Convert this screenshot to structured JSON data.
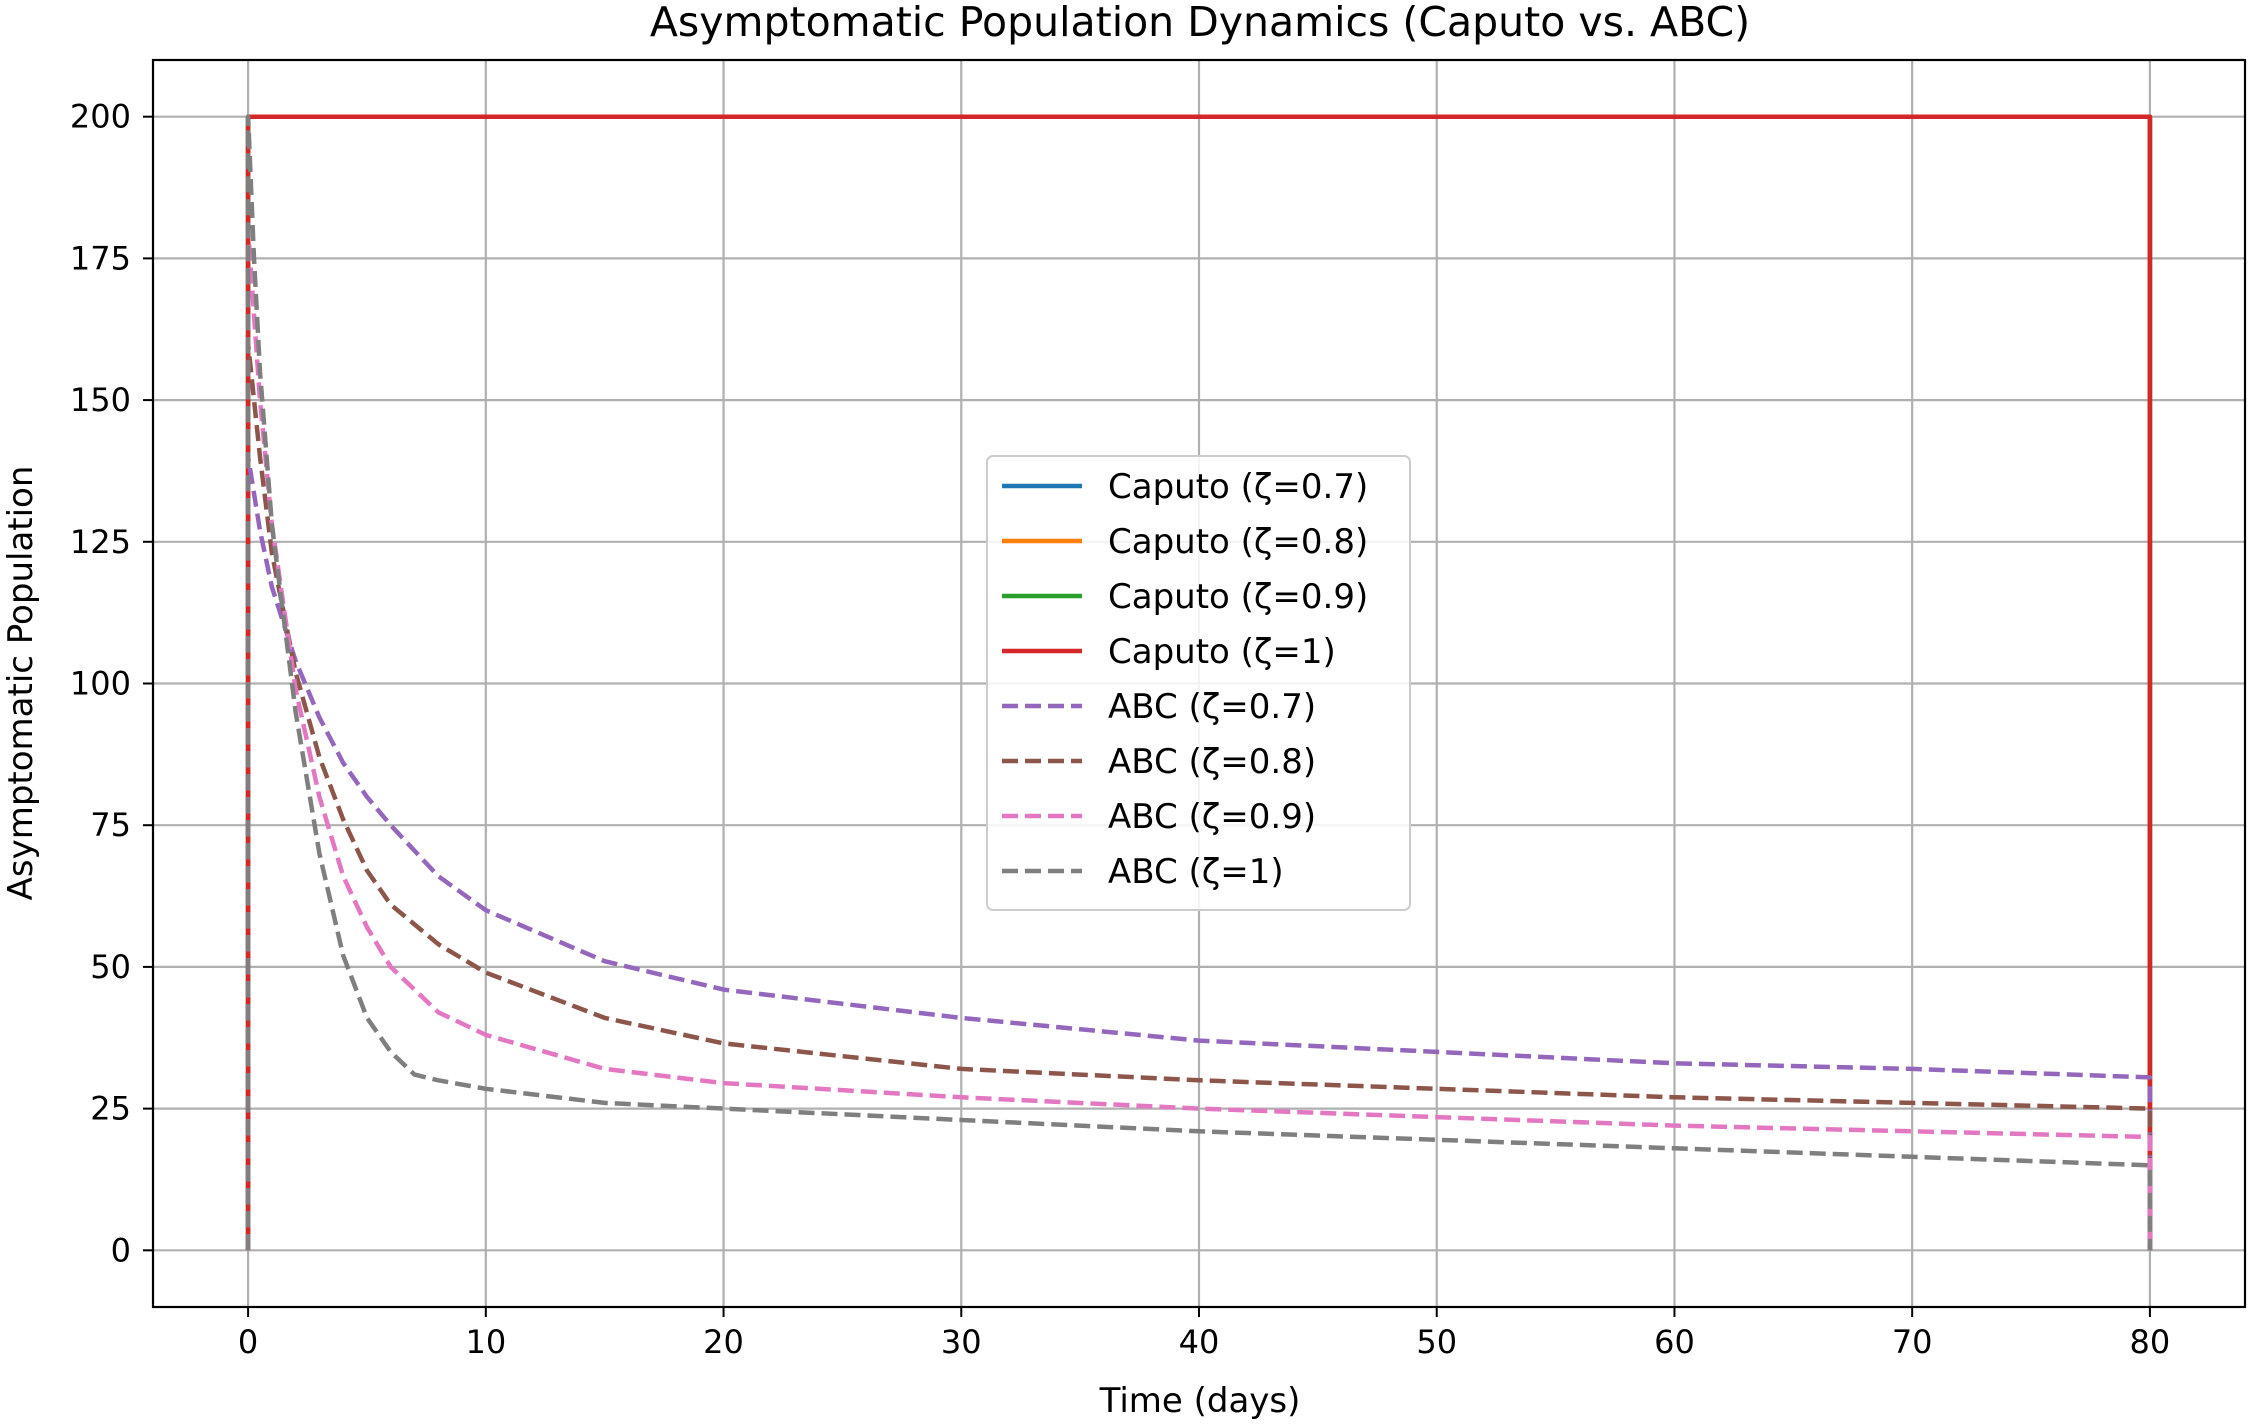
{
  "chart_data": {
    "type": "line",
    "title": "Asymptomatic  Population Dynamics (Caputo vs. ABC)",
    "xlabel": "Time (days)",
    "ylabel": "Asymptomatic  Population",
    "xlim": [
      -4,
      84
    ],
    "ylim": [
      -10,
      210
    ],
    "grid": true,
    "legend_position": "center",
    "x_ticks": [
      0,
      10,
      20,
      30,
      40,
      50,
      60,
      70,
      80
    ],
    "x_tick_labels": [
      "0",
      "10",
      "20",
      "30",
      "40",
      "50",
      "60",
      "70",
      "80"
    ],
    "y_ticks": [
      0,
      25,
      50,
      75,
      100,
      125,
      150,
      175,
      200
    ],
    "y_tick_labels": [
      "0",
      "25",
      "50",
      "75",
      "100",
      "125",
      "150",
      "175",
      "200"
    ],
    "series": [
      {
        "name": "Caputo (ζ=0.7)",
        "color": "#1f77b4",
        "style": "solid",
        "x": [
          0,
          0,
          80,
          80
        ],
        "y": [
          0,
          200,
          200,
          0
        ]
      },
      {
        "name": "Caputo (ζ=0.8)",
        "color": "#ff7f0e",
        "style": "solid",
        "x": [
          0,
          0,
          80,
          80
        ],
        "y": [
          0,
          200,
          200,
          0
        ]
      },
      {
        "name": "Caputo (ζ=0.9)",
        "color": "#2ca02c",
        "style": "solid",
        "x": [
          0,
          0,
          80,
          80
        ],
        "y": [
          0,
          200,
          200,
          0
        ]
      },
      {
        "name": "Caputo (ζ=1)",
        "color": "#d62728",
        "style": "solid",
        "x": [
          0,
          0,
          80,
          80
        ],
        "y": [
          0,
          200,
          200,
          0
        ]
      },
      {
        "name": "ABC (ζ=0.7)",
        "color": "#9467bd",
        "style": "dashed",
        "x": [
          0,
          0,
          0.5,
          1,
          2,
          3,
          4,
          5,
          6,
          8,
          10,
          15,
          20,
          30,
          40,
          50,
          60,
          70,
          80,
          80
        ],
        "y": [
          0,
          140,
          127,
          117,
          104,
          94,
          86,
          80,
          75,
          66,
          60,
          51,
          46,
          41,
          37,
          35,
          33,
          32,
          30.5,
          0
        ]
      },
      {
        "name": "ABC (ζ=0.8)",
        "color": "#8c564b",
        "style": "dashed",
        "x": [
          0,
          0,
          0.5,
          1,
          2,
          3,
          4,
          5,
          6,
          8,
          10,
          15,
          20,
          30,
          40,
          50,
          60,
          70,
          80,
          80
        ],
        "y": [
          0,
          160,
          140,
          123,
          102,
          87,
          76,
          67,
          61,
          54,
          49,
          41,
          36.5,
          32,
          30,
          28.5,
          27,
          26,
          25,
          0
        ]
      },
      {
        "name": "ABC (ζ=0.9)",
        "color": "#e377c2",
        "style": "dashed",
        "x": [
          0,
          0,
          0.5,
          1,
          2,
          3,
          4,
          5,
          6,
          8,
          10,
          15,
          20,
          30,
          40,
          50,
          60,
          70,
          80,
          80
        ],
        "y": [
          0,
          180,
          150,
          128,
          99,
          80,
          66,
          57,
          50,
          42,
          38,
          32,
          29.5,
          27,
          25,
          23.5,
          22,
          21,
          20,
          0
        ]
      },
      {
        "name": "ABC (ζ=1)",
        "color": "#7f7f7f",
        "style": "dashed",
        "x": [
          0,
          0,
          0.25,
          0.5,
          1,
          2,
          3,
          4,
          5,
          6,
          7,
          8,
          10,
          15,
          20,
          30,
          40,
          50,
          60,
          70,
          80,
          80
        ],
        "y": [
          0,
          200,
          175,
          155,
          128,
          95,
          70,
          52,
          41,
          35,
          31,
          30,
          28.5,
          26,
          25,
          23,
          21,
          19.5,
          18,
          16.5,
          15,
          0
        ]
      }
    ]
  }
}
